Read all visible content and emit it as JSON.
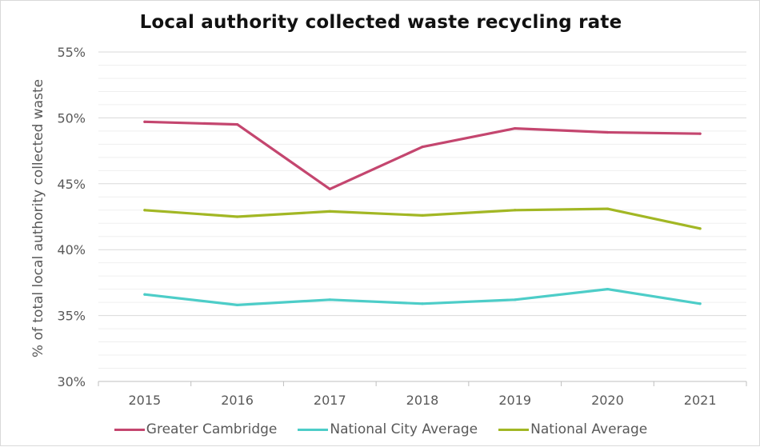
{
  "chart_data": {
    "type": "line",
    "title": "Local authority collected waste recycling rate",
    "ylabel": "% of total local authority collected waste",
    "xlabel": "",
    "categories": [
      "2015",
      "2016",
      "2017",
      "2018",
      "2019",
      "2020",
      "2021"
    ],
    "ylim": [
      30,
      55
    ],
    "yticks": [
      30,
      35,
      40,
      45,
      50,
      55
    ],
    "ytick_labels": [
      "30%",
      "35%",
      "40%",
      "45%",
      "50%",
      "55%"
    ],
    "grid": true,
    "legend_position": "bottom",
    "series": [
      {
        "name": "Greater Cambridge",
        "color": "#c4466f",
        "values": [
          49.7,
          49.5,
          44.6,
          47.8,
          49.2,
          48.9,
          48.8
        ]
      },
      {
        "name": "National City Average",
        "color": "#4dcdc8",
        "values": [
          36.6,
          35.8,
          36.2,
          35.9,
          36.2,
          37.0,
          35.9
        ]
      },
      {
        "name": "National Average",
        "color": "#a2b724",
        "values": [
          43.0,
          42.5,
          42.9,
          42.6,
          43.0,
          43.1,
          41.6
        ]
      }
    ]
  }
}
